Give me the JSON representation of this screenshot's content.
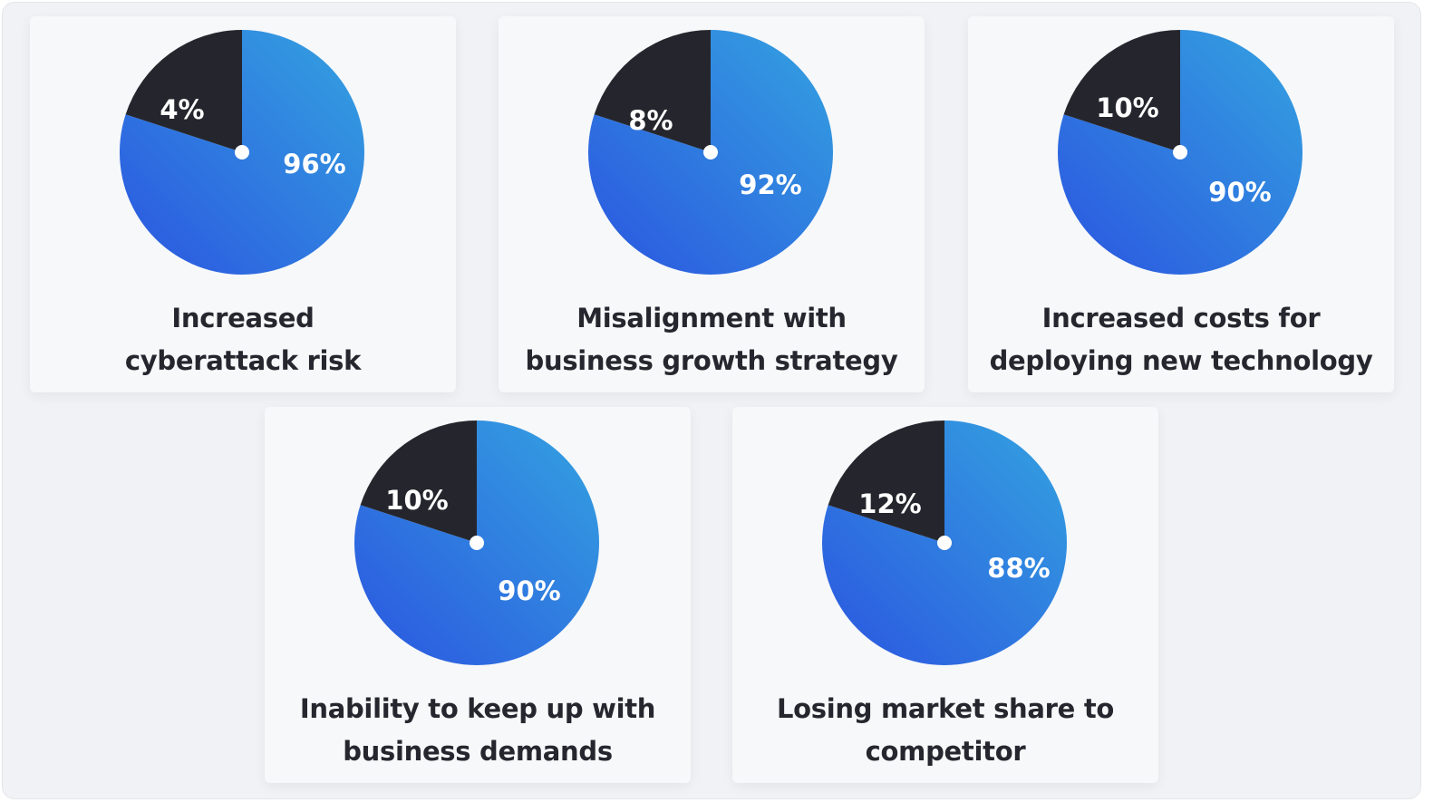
{
  "chart_data": [
    {
      "type": "pie",
      "title": "Increased cyberattack risk",
      "title_lines": [
        "Increased",
        "cyberattack risk"
      ],
      "slices": [
        {
          "label": "96%",
          "value": 96,
          "color": "blue-gradient"
        },
        {
          "label": "4%",
          "value": 4,
          "color": "#25262d"
        }
      ]
    },
    {
      "type": "pie",
      "title": "Misalignment with business growth strategy",
      "title_lines": [
        "Misalignment with",
        "business growth strategy"
      ],
      "slices": [
        {
          "label": "92%",
          "value": 92,
          "color": "blue-gradient"
        },
        {
          "label": "8%",
          "value": 8,
          "color": "#25262d"
        }
      ]
    },
    {
      "type": "pie",
      "title": "Increased costs for deploying new technology",
      "title_lines": [
        "Increased costs for",
        "deploying new technology"
      ],
      "slices": [
        {
          "label": "90%",
          "value": 90,
          "color": "blue-gradient"
        },
        {
          "label": "10%",
          "value": 10,
          "color": "#25262d"
        }
      ]
    },
    {
      "type": "pie",
      "title": "Inability to keep up with business demands",
      "title_lines": [
        "Inability to keep up with",
        "business demands"
      ],
      "slices": [
        {
          "label": "90%",
          "value": 90,
          "color": "blue-gradient"
        },
        {
          "label": "10%",
          "value": 10,
          "color": "#25262d"
        }
      ]
    },
    {
      "type": "pie",
      "title": "Losing market share to competitor",
      "title_lines": [
        "Losing market share to",
        "competitor"
      ],
      "slices": [
        {
          "label": "88%",
          "value": 88,
          "color": "blue-gradient"
        },
        {
          "label": "12%",
          "value": 12,
          "color": "#25262d"
        }
      ]
    }
  ],
  "colors": {
    "gradient_start": "#2b55e0",
    "gradient_end": "#34a3e0",
    "dark": "#25262d",
    "background": "#f1f2f5",
    "card": "#f7f8fa"
  }
}
